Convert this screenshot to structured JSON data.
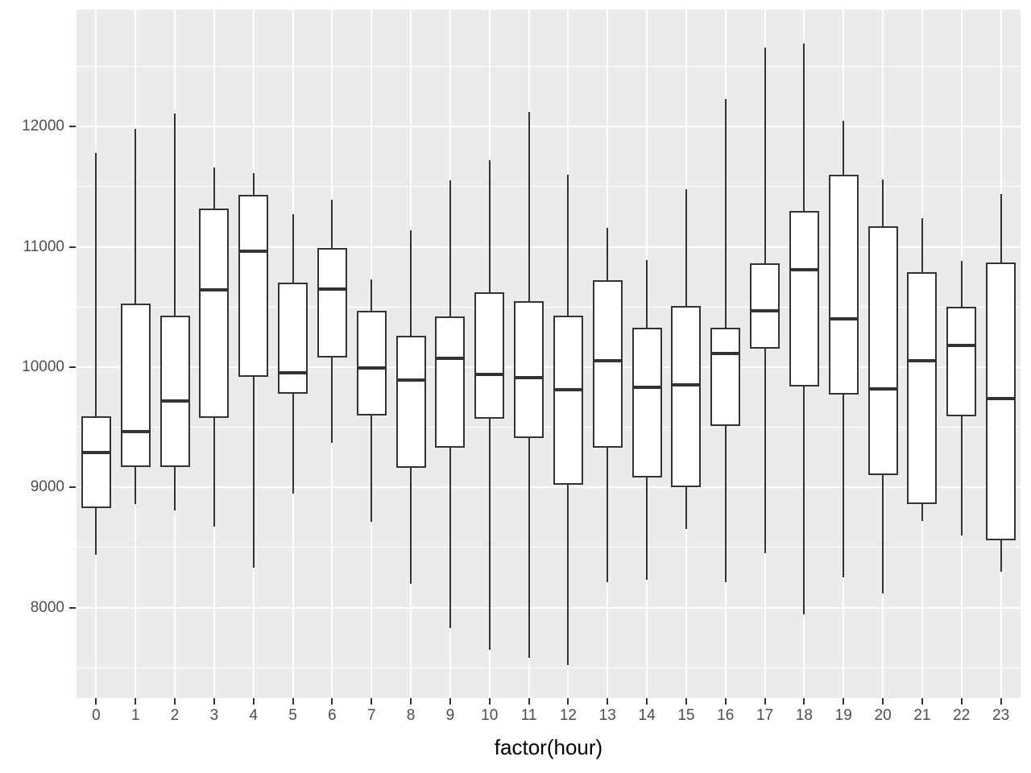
{
  "chart_data": {
    "type": "boxplot",
    "title": "",
    "xlabel": "factor(hour)",
    "ylabel": "",
    "ylim": [
      7247,
      12972
    ],
    "grid": true,
    "legend": "none",
    "y_major_ticks": [
      {
        "label": "8000",
        "value": 8000
      },
      {
        "label": "9000",
        "value": 9000
      },
      {
        "label": "10000",
        "value": 10000
      },
      {
        "label": "11000",
        "value": 11000
      },
      {
        "label": "12000",
        "value": 12000
      }
    ],
    "y_minor_gridlines": [
      7500,
      8500,
      9500,
      10500,
      11500,
      12500
    ],
    "categories": [
      "0",
      "1",
      "2",
      "3",
      "4",
      "5",
      "6",
      "7",
      "8",
      "9",
      "10",
      "11",
      "12",
      "13",
      "14",
      "15",
      "16",
      "17",
      "18",
      "19",
      "20",
      "21",
      "22",
      "23"
    ],
    "series": [
      {
        "hour": "0",
        "whisker_low": 8440,
        "q1": 8830,
        "median": 9290,
        "q3": 9590,
        "whisker_high": 11780
      },
      {
        "hour": "1",
        "whisker_low": 8860,
        "q1": 9170,
        "median": 9460,
        "q3": 10530,
        "whisker_high": 11980
      },
      {
        "hour": "2",
        "whisker_low": 8810,
        "q1": 9170,
        "median": 9720,
        "q3": 10430,
        "whisker_high": 12110
      },
      {
        "hour": "3",
        "whisker_low": 8670,
        "q1": 9575,
        "median": 10640,
        "q3": 11320,
        "whisker_high": 11660
      },
      {
        "hour": "4",
        "whisker_low": 8330,
        "q1": 9920,
        "median": 10960,
        "q3": 11430,
        "whisker_high": 11610
      },
      {
        "hour": "5",
        "whisker_low": 8950,
        "q1": 9780,
        "median": 9950,
        "q3": 10700,
        "whisker_high": 11270
      },
      {
        "hour": "6",
        "whisker_low": 9370,
        "q1": 10080,
        "median": 10650,
        "q3": 10990,
        "whisker_high": 11390
      },
      {
        "hour": "7",
        "whisker_low": 8710,
        "q1": 9600,
        "median": 9990,
        "q3": 10470,
        "whisker_high": 10730
      },
      {
        "hour": "8",
        "whisker_low": 8200,
        "q1": 9160,
        "median": 9890,
        "q3": 10260,
        "whisker_high": 11140
      },
      {
        "hour": "9",
        "whisker_low": 7830,
        "q1": 9330,
        "median": 10070,
        "q3": 10420,
        "whisker_high": 11550
      },
      {
        "hour": "10",
        "whisker_low": 7650,
        "q1": 9570,
        "median": 9940,
        "q3": 10620,
        "whisker_high": 11720
      },
      {
        "hour": "11",
        "whisker_low": 7580,
        "q1": 9410,
        "median": 9910,
        "q3": 10550,
        "whisker_high": 12120
      },
      {
        "hour": "12",
        "whisker_low": 7520,
        "q1": 9020,
        "median": 9810,
        "q3": 10430,
        "whisker_high": 11600
      },
      {
        "hour": "13",
        "whisker_low": 8210,
        "q1": 9330,
        "median": 10050,
        "q3": 10720,
        "whisker_high": 11160
      },
      {
        "hour": "14",
        "whisker_low": 8230,
        "q1": 9080,
        "median": 9830,
        "q3": 10330,
        "whisker_high": 10890
      },
      {
        "hour": "15",
        "whisker_low": 8650,
        "q1": 9000,
        "median": 9850,
        "q3": 10510,
        "whisker_high": 11480
      },
      {
        "hour": "16",
        "whisker_low": 8210,
        "q1": 9510,
        "median": 10110,
        "q3": 10330,
        "whisker_high": 12230
      },
      {
        "hour": "17",
        "whisker_low": 8450,
        "q1": 10150,
        "median": 10470,
        "q3": 10860,
        "whisker_high": 12660
      },
      {
        "hour": "18",
        "whisker_low": 7940,
        "q1": 9840,
        "median": 10810,
        "q3": 11300,
        "whisker_high": 12690
      },
      {
        "hour": "19",
        "whisker_low": 8250,
        "q1": 9770,
        "median": 10400,
        "q3": 11600,
        "whisker_high": 12050
      },
      {
        "hour": "20",
        "whisker_low": 8120,
        "q1": 9100,
        "median": 9820,
        "q3": 11170,
        "whisker_high": 11560
      },
      {
        "hour": "21",
        "whisker_low": 8720,
        "q1": 8860,
        "median": 10050,
        "q3": 10790,
        "whisker_high": 11240
      },
      {
        "hour": "22",
        "whisker_low": 8600,
        "q1": 9590,
        "median": 10180,
        "q3": 10500,
        "whisker_high": 10880
      },
      {
        "hour": "23",
        "whisker_low": 8300,
        "q1": 8560,
        "median": 9740,
        "q3": 10870,
        "whisker_high": 11440
      }
    ]
  },
  "colors": {
    "panel_background": "#EBEBEB",
    "gridline": "#FFFFFF",
    "box_stroke": "#333333",
    "box_fill": "#FFFFFF",
    "tick_label": "#4D4D4D",
    "axis_title": "#000000"
  }
}
